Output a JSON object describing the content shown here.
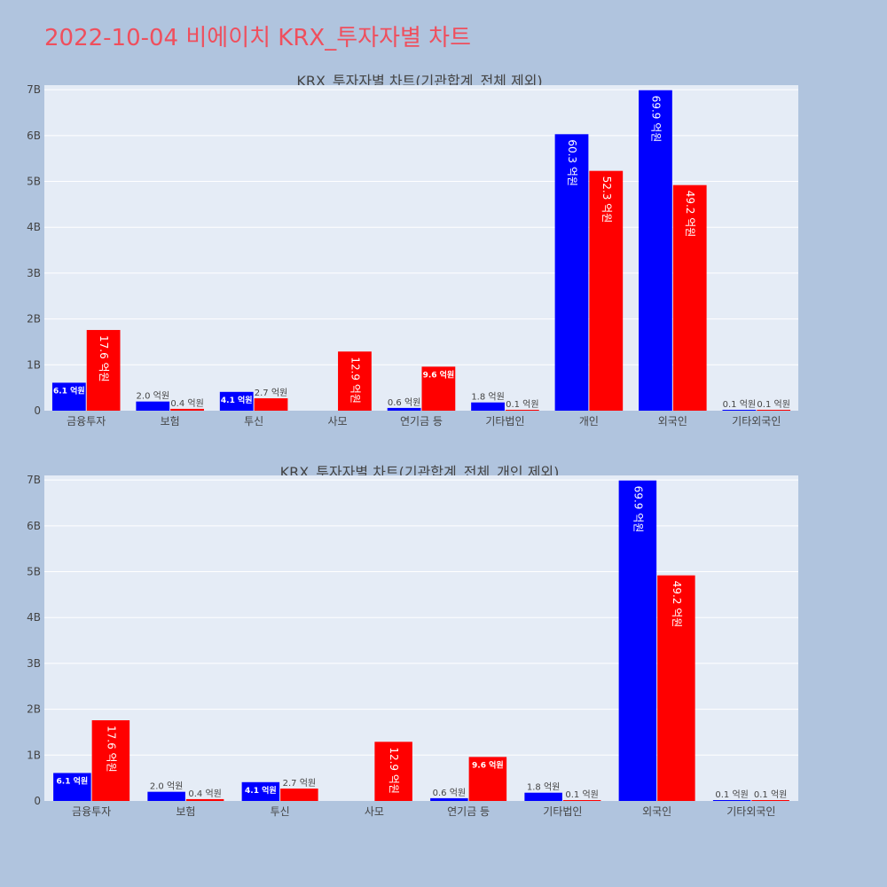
{
  "page": {
    "title": "2022-10-04 비에이치 KRX_투자자별 차트"
  },
  "colors": {
    "buy": "#0000ff",
    "sell": "#ff0000",
    "plot_bg": "#e5ecf6",
    "page_bg": "#b0c4de",
    "title": "#ef4f5d"
  },
  "chart_data": [
    {
      "type": "bar",
      "title": "KRX_투자자별 차트(기관합계_전체 제외)",
      "categories": [
        "금융투자",
        "보험",
        "투신",
        "사모",
        "연기금 등",
        "기타법인",
        "개인",
        "외국인",
        "기타외국인"
      ],
      "ylim": [
        0,
        7.1
      ],
      "y_unit": "B",
      "yticks": [
        "0",
        "1B",
        "2B",
        "3B",
        "4B",
        "5B",
        "6B",
        "7B"
      ],
      "grid": true,
      "series": [
        {
          "color": "#0000ff",
          "values": [
            0.61,
            0.2,
            0.41,
            0,
            0.06,
            0.18,
            6.03,
            6.99,
            0.01
          ],
          "labels": [
            "6.1 억원",
            "2.0 억원",
            "4.1 억원",
            "",
            "0.6 억원",
            "1.8 억원",
            "60.3 억원",
            "69.9 억원",
            "0.1 억원"
          ]
        },
        {
          "color": "#ff0000",
          "values": [
            1.76,
            0.04,
            0.27,
            1.29,
            0.96,
            0.01,
            5.23,
            4.92,
            0.01
          ],
          "labels": [
            "17.6 억원",
            "0.4 억원",
            "2.7 억원",
            "12.9 억원",
            "9.6 억원",
            "0.1 억원",
            "52.3 억원",
            "49.2 억원",
            "0.1 억원"
          ]
        }
      ]
    },
    {
      "type": "bar",
      "title": "KRX_투자자별 차트(기관합계_전체_개인 제외)",
      "categories": [
        "금융투자",
        "보험",
        "투신",
        "사모",
        "연기금 등",
        "기타법인",
        "외국인",
        "기타외국인"
      ],
      "ylim": [
        0,
        7.1
      ],
      "y_unit": "B",
      "yticks": [
        "0",
        "1B",
        "2B",
        "3B",
        "4B",
        "5B",
        "6B",
        "7B"
      ],
      "grid": true,
      "series": [
        {
          "color": "#0000ff",
          "values": [
            0.61,
            0.2,
            0.41,
            0,
            0.06,
            0.18,
            6.99,
            0.01
          ],
          "labels": [
            "6.1 억원",
            "2.0 억원",
            "4.1 억원",
            "",
            "0.6 억원",
            "1.8 억원",
            "69.9 억원",
            "0.1 억원"
          ]
        },
        {
          "color": "#ff0000",
          "values": [
            1.76,
            0.04,
            0.27,
            1.29,
            0.96,
            0.01,
            4.92,
            0.01
          ],
          "labels": [
            "17.6 억원",
            "0.4 억원",
            "2.7 억원",
            "12.9 억원",
            "9.6 억원",
            "0.1 억원",
            "49.2 억원",
            "0.1 억원"
          ]
        }
      ]
    }
  ]
}
